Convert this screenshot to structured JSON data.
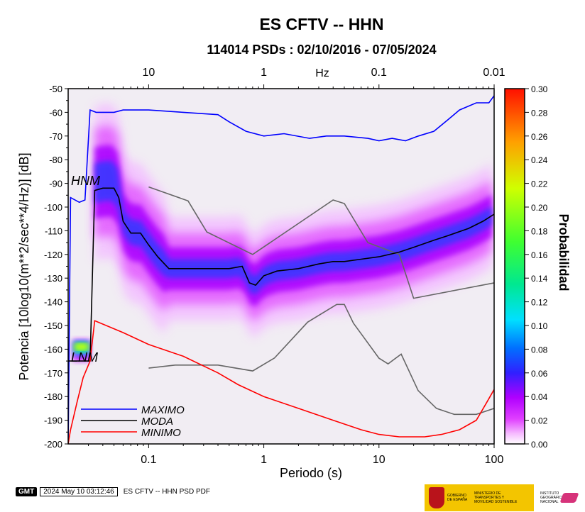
{
  "chart_data": {
    "type": "heatmap",
    "title": "ES CFTV -- HHN",
    "subtitle": "114014 PSDs : 02/10/2016 - 07/05/2024",
    "xlabel": "Periodo (s)",
    "ylabel": "Potencia [10log10(m**2/sec**4/Hz)] [dB]",
    "x_scale": "log",
    "xlim": [
      0.02,
      100
    ],
    "ylim": [
      -200,
      -50
    ],
    "x_ticks": [
      {
        "value": 0.1,
        "label": "0.1"
      },
      {
        "value": 1,
        "label": "1"
      },
      {
        "value": 10,
        "label": "10"
      },
      {
        "value": 100,
        "label": "100"
      }
    ],
    "top_axis_label": "Hz",
    "top_ticks": [
      {
        "value": 0.1,
        "label": "10"
      },
      {
        "value": 1,
        "label": "1"
      },
      {
        "value": 10,
        "label": "0.1"
      },
      {
        "value": 100,
        "label": "0.01"
      }
    ],
    "y_ticks": [
      -50,
      -60,
      -70,
      -80,
      -90,
      -100,
      -110,
      -120,
      -130,
      -140,
      -150,
      -160,
      -170,
      -180,
      -190,
      -200
    ],
    "colorbar": {
      "label": "Probabilidad",
      "range": [
        0,
        0.3
      ],
      "ticks": [
        "0.00",
        "0.02",
        "0.04",
        "0.06",
        "0.08",
        "0.10",
        "0.12",
        "0.14",
        "0.16",
        "0.18",
        "0.20",
        "0.22",
        "0.24",
        "0.26",
        "0.28",
        "0.30"
      ]
    },
    "model_labels": {
      "high": "HNM",
      "low": "LNM"
    },
    "series": [
      {
        "name": "MAXIMO",
        "color": "#0000ff",
        "points": [
          [
            0.02,
            -200
          ],
          [
            0.021,
            -96
          ],
          [
            0.025,
            -98
          ],
          [
            0.028,
            -97
          ],
          [
            0.031,
            -59
          ],
          [
            0.035,
            -60
          ],
          [
            0.05,
            -60
          ],
          [
            0.06,
            -59
          ],
          [
            0.1,
            -59
          ],
          [
            0.2,
            -60
          ],
          [
            0.4,
            -61
          ],
          [
            0.5,
            -64
          ],
          [
            0.7,
            -68
          ],
          [
            1,
            -70
          ],
          [
            1.5,
            -69
          ],
          [
            2.5,
            -71
          ],
          [
            3.5,
            -70
          ],
          [
            5,
            -70
          ],
          [
            8,
            -71
          ],
          [
            10,
            -72
          ],
          [
            13,
            -71
          ],
          [
            17,
            -72
          ],
          [
            22,
            -70
          ],
          [
            30,
            -68
          ],
          [
            40,
            -63
          ],
          [
            50,
            -59
          ],
          [
            70,
            -56
          ],
          [
            90,
            -56
          ],
          [
            100,
            -53
          ]
        ]
      },
      {
        "name": "MODA",
        "color": "#000000",
        "points": [
          [
            0.02,
            -165
          ],
          [
            0.031,
            -165
          ],
          [
            0.034,
            -93
          ],
          [
            0.04,
            -92
          ],
          [
            0.05,
            -92
          ],
          [
            0.055,
            -96
          ],
          [
            0.06,
            -106
          ],
          [
            0.07,
            -111
          ],
          [
            0.085,
            -111
          ],
          [
            0.1,
            -116
          ],
          [
            0.12,
            -121
          ],
          [
            0.15,
            -126
          ],
          [
            0.3,
            -126
          ],
          [
            0.5,
            -126
          ],
          [
            0.65,
            -125
          ],
          [
            0.75,
            -132
          ],
          [
            0.85,
            -133
          ],
          [
            1,
            -129
          ],
          [
            1.3,
            -127
          ],
          [
            2,
            -126
          ],
          [
            3,
            -124
          ],
          [
            4,
            -123
          ],
          [
            5,
            -123
          ],
          [
            7,
            -122
          ],
          [
            10,
            -121
          ],
          [
            15,
            -119
          ],
          [
            20,
            -117
          ],
          [
            30,
            -114
          ],
          [
            40,
            -112
          ],
          [
            60,
            -109
          ],
          [
            80,
            -106
          ],
          [
            100,
            -103
          ]
        ]
      },
      {
        "name": "MINIMO",
        "color": "#ff0000",
        "points": [
          [
            0.02,
            -200
          ],
          [
            0.021,
            -194
          ],
          [
            0.024,
            -182
          ],
          [
            0.027,
            -172
          ],
          [
            0.031,
            -165
          ],
          [
            0.034,
            -148
          ],
          [
            0.06,
            -153
          ],
          [
            0.1,
            -158
          ],
          [
            0.2,
            -163
          ],
          [
            0.4,
            -170
          ],
          [
            0.6,
            -175
          ],
          [
            1,
            -180
          ],
          [
            2,
            -185
          ],
          [
            4,
            -190
          ],
          [
            7,
            -194
          ],
          [
            10,
            -196
          ],
          [
            15,
            -197
          ],
          [
            25,
            -197
          ],
          [
            35,
            -196
          ],
          [
            50,
            -194
          ],
          [
            70,
            -190
          ],
          [
            85,
            -183
          ],
          [
            100,
            -177
          ]
        ]
      }
    ],
    "reference_curves": [
      {
        "name": "HNM",
        "color": "#666666",
        "points": [
          [
            0.1,
            -91.5
          ],
          [
            0.22,
            -97.4
          ],
          [
            0.32,
            -110.5
          ],
          [
            0.8,
            -120
          ],
          [
            4,
            -97
          ],
          [
            5,
            -98.5
          ],
          [
            8,
            -115
          ],
          [
            15,
            -120
          ],
          [
            20,
            -138.5
          ],
          [
            100,
            -132
          ]
        ]
      },
      {
        "name": "LNM",
        "color": "#666666",
        "points": [
          [
            0.1,
            -168
          ],
          [
            0.17,
            -166.7
          ],
          [
            0.4,
            -166.7
          ],
          [
            0.8,
            -169.2
          ],
          [
            1.24,
            -163.7
          ],
          [
            2.4,
            -148.6
          ],
          [
            4.3,
            -141.1
          ],
          [
            5,
            -141.1
          ],
          [
            6,
            -149
          ],
          [
            10,
            -163.8
          ],
          [
            12,
            -166.2
          ],
          [
            15.6,
            -162.1
          ],
          [
            21.9,
            -177.5
          ],
          [
            31.6,
            -185
          ],
          [
            45,
            -187.5
          ],
          [
            70,
            -187.5
          ],
          [
            100,
            -185
          ]
        ]
      }
    ]
  },
  "legend": [
    {
      "label": "MAXIMO",
      "color": "#0000ff"
    },
    {
      "label": "MODA",
      "color": "#000000"
    },
    {
      "label": "MINIMO",
      "color": "#ff0000"
    }
  ],
  "footer": {
    "gmt_logo": "GMT",
    "timestamp": "2024 May 10 03:12:46",
    "caption": "ES CFTV -- HHN PSD PDF"
  },
  "logos": {
    "gobierno": "GOBIERNO DE ESPAÑA",
    "ministerio": "MINISTERIO DE TRANSPORTES Y MOVILIDAD SOSTENIBLE",
    "instituto": "INSTITUTO GEOGRÁFICO NACIONAL"
  }
}
